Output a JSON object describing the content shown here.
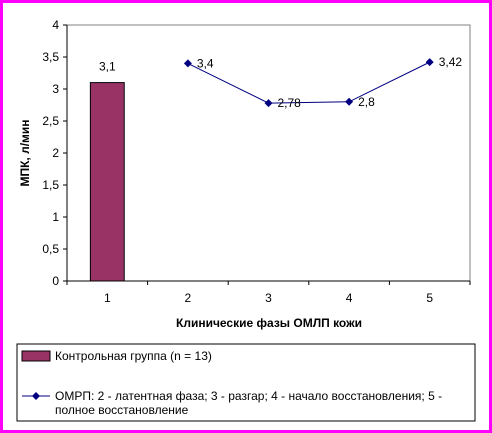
{
  "chart_data": {
    "type": "bar",
    "categories": [
      "1",
      "2",
      "3",
      "4",
      "5"
    ],
    "ylabel": "МПК, л/мин",
    "xlabel": "Клинические фазы ОМЛП кожи",
    "ylim": [
      0,
      4
    ],
    "yticks": [
      "0",
      "0,5",
      "1",
      "1,5",
      "2",
      "2,5",
      "3",
      "3,5",
      "4"
    ],
    "grid": false,
    "legend_position": "bottom",
    "series": [
      {
        "name": "Контрольная группа (n = 13)",
        "type": "bar",
        "color": "#993366",
        "x": [
          "1"
        ],
        "values": [
          3.1
        ],
        "labels": [
          "3,1"
        ]
      },
      {
        "name": "ОМРП: 2 - латентная фаза; 3 - разгар; 4 - начало восстановления; 5 - полное восстановление",
        "type": "line",
        "color": "#000080",
        "x": [
          "2",
          "3",
          "4",
          "5"
        ],
        "values": [
          3.4,
          2.78,
          2.8,
          3.42
        ],
        "labels": [
          "3,4",
          "2,78",
          "2,8",
          "3,42"
        ]
      }
    ]
  }
}
